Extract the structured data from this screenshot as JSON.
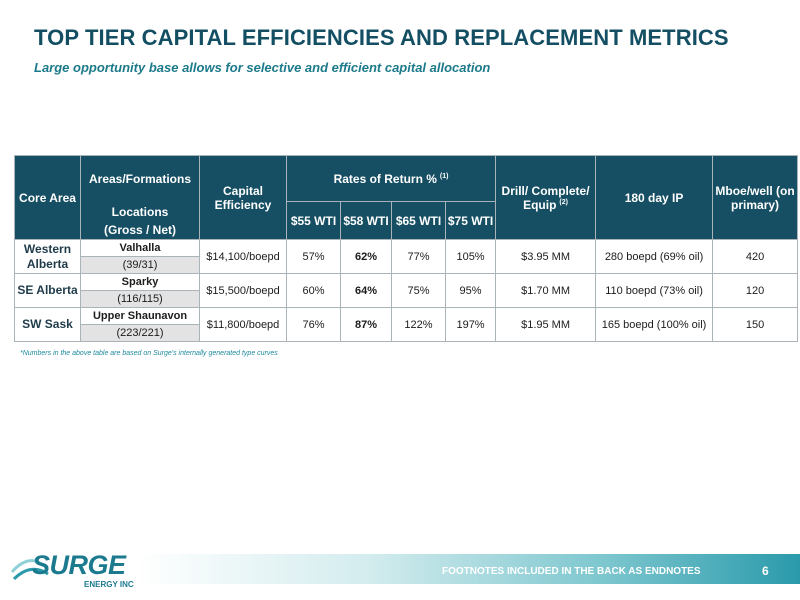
{
  "slide": {
    "title": "TOP TIER CAPITAL EFFICIENCIES AND REPLACEMENT METRICS",
    "subtitle": "Large opportunity base allows for selective and efficient capital allocation"
  },
  "table": {
    "headers": {
      "core_area": "Core Area",
      "areas_formations": "Areas/Formations",
      "locations": "Locations",
      "gross_net": "(Gross / Net)",
      "capital_efficiency": "Capital Efficiency",
      "rates_of_return": "Rates of Return %",
      "rates_of_return_note": "(1)",
      "drill": "Drill/ Complete/ Equip",
      "drill_note": "(2)",
      "ip_180": "180 day IP",
      "mboe": "Mboe/well (on primary)",
      "wti": [
        "$55 WTI",
        "$58 WTI",
        "$65 WTI",
        "$75 WTI"
      ]
    },
    "rows": [
      {
        "core": "Western Alberta",
        "area": "Valhalla",
        "locations": "(39/31)",
        "capital_efficiency": "$14,100/boepd",
        "ror": [
          "57%",
          "62%",
          "77%",
          "105%"
        ],
        "drill": "$3.95 MM",
        "ip": "280 boepd (69% oil)",
        "mboe": "420"
      },
      {
        "core": "SE Alberta",
        "area": "Sparky",
        "locations": "(116/115)",
        "capital_efficiency": "$15,500/boepd",
        "ror": [
          "60%",
          "64%",
          "75%",
          "95%"
        ],
        "drill": "$1.70 MM",
        "ip": "110 boepd (73% oil)",
        "mboe": "120"
      },
      {
        "core": "SW Sask",
        "area": "Upper Shaunavon",
        "locations": "(223/221)",
        "capital_efficiency": "$11,800/boepd",
        "ror": [
          "76%",
          "87%",
          "122%",
          "197%"
        ],
        "drill": "$1.95 MM",
        "ip": "165 boepd (100% oil)",
        "mboe": "150"
      }
    ],
    "footnote": "*Numbers in the above table are based on Surge's internally generated type curves"
  },
  "footer": {
    "text": "FOOTNOTES INCLUDED IN THE BACK AS ENDNOTES",
    "page": "6"
  },
  "logo": {
    "word": "SURGE",
    "sub": "ENERGY INC"
  },
  "colors": {
    "title": "#134e63",
    "subtitle": "#1c7a8a",
    "header_fill": "#164f63",
    "logo": "#1b7a8e"
  }
}
